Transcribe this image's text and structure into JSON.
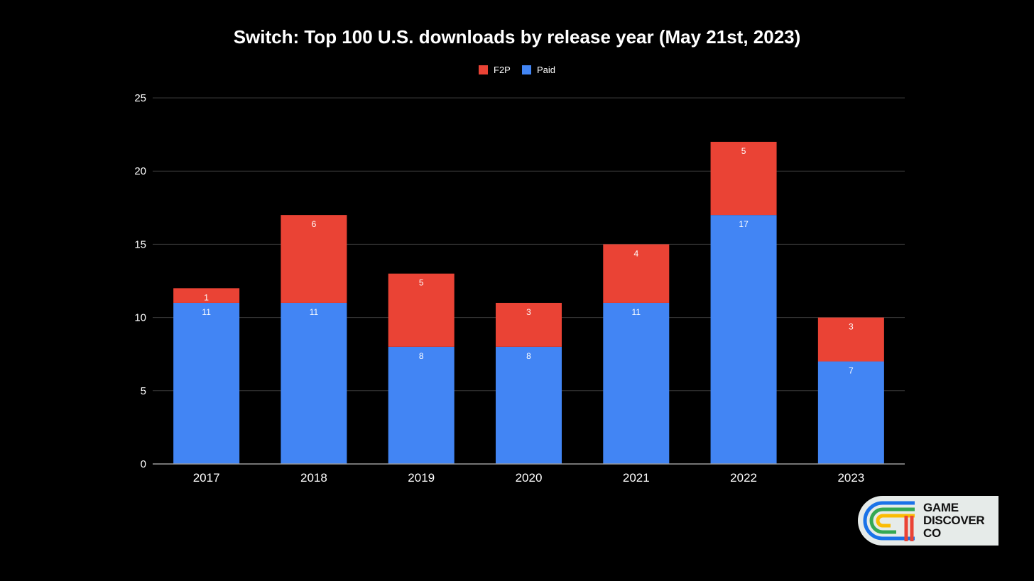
{
  "chart_data": {
    "type": "bar",
    "stacked": true,
    "title": "Switch: Top 100 U.S. downloads by release year (May 21st, 2023)",
    "categories": [
      "2017",
      "2018",
      "2019",
      "2020",
      "2021",
      "2022",
      "2023"
    ],
    "series": [
      {
        "name": "Paid",
        "color": "#4285f4",
        "values": [
          11,
          11,
          8,
          8,
          11,
          17,
          7
        ]
      },
      {
        "name": "F2P",
        "color": "#ea4335",
        "values": [
          1,
          6,
          5,
          3,
          4,
          5,
          3
        ]
      }
    ],
    "legend_order": [
      "F2P",
      "Paid"
    ],
    "legend_position": "top-center",
    "ylim": [
      0,
      25
    ],
    "yticks": [
      0,
      5,
      10,
      15,
      20,
      25
    ],
    "xlabel": "",
    "ylabel": "",
    "grid": true
  },
  "logo": {
    "lines": [
      "GAME",
      "DISCOVER",
      "CO"
    ],
    "colors": [
      "#1a73e8",
      "#34a853",
      "#fbbc04",
      "#ea4335"
    ]
  }
}
